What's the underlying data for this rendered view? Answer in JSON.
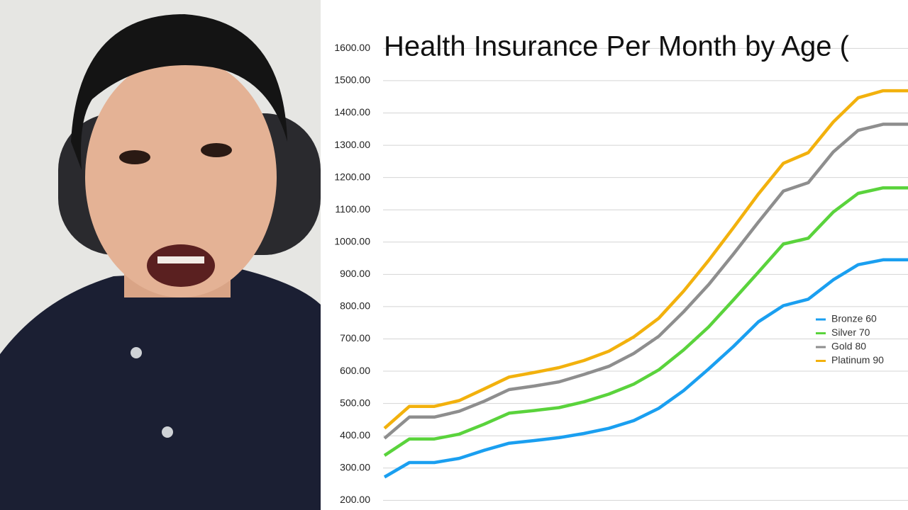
{
  "chart_data": {
    "type": "line",
    "title": "Health Insurance Per Month by Age (",
    "ylim": [
      170,
      1750
    ],
    "yticks": [
      {
        "value": 200,
        "label": "200.00"
      },
      {
        "value": 300,
        "label": "300.00"
      },
      {
        "value": 400,
        "label": "400.00"
      },
      {
        "value": 500,
        "label": "500.00"
      },
      {
        "value": 600,
        "label": "600.00"
      },
      {
        "value": 700,
        "label": "700.00"
      },
      {
        "value": 800,
        "label": "800.00"
      },
      {
        "value": 900,
        "label": "900.00"
      },
      {
        "value": 1000,
        "label": "1000.00"
      },
      {
        "value": 1100,
        "label": "1100.00"
      },
      {
        "value": 1200,
        "label": "1200.00"
      },
      {
        "value": 1300,
        "label": "1300.00"
      },
      {
        "value": 1400,
        "label": "1400.00"
      },
      {
        "value": 1500,
        "label": "1500.00"
      },
      {
        "value": 1600,
        "label": "1600.00"
      }
    ],
    "grid": true,
    "legend": "right",
    "series": [
      {
        "name": "Bronze 60",
        "color": "#1a9ff0",
        "values": [
          272,
          317,
          317,
          330,
          355,
          377,
          385,
          394,
          407,
          423,
          447,
          485,
          540,
          607,
          677,
          753,
          803,
          823,
          883,
          930,
          945,
          945
        ]
      },
      {
        "name": "Silver 70",
        "color": "#5ad33c",
        "values": [
          339,
          390,
          390,
          405,
          436,
          470,
          478,
          487,
          505,
          529,
          560,
          604,
          666,
          737,
          821,
          907,
          994,
          1012,
          1093,
          1151,
          1168,
          1168
        ]
      },
      {
        "name": "Gold 80",
        "color": "#8e8e8e",
        "values": [
          392,
          458,
          458,
          476,
          507,
          543,
          554,
          567,
          590,
          615,
          655,
          708,
          784,
          868,
          963,
          1062,
          1158,
          1184,
          1279,
          1346,
          1365,
          1365
        ]
      },
      {
        "name": "Platinum 90",
        "color": "#f2b10d",
        "values": [
          423,
          491,
          491,
          509,
          545,
          582,
          596,
          611,
          633,
          662,
          706,
          764,
          848,
          943,
          1045,
          1149,
          1244,
          1277,
          1372,
          1447,
          1469,
          1469
        ]
      }
    ]
  }
}
